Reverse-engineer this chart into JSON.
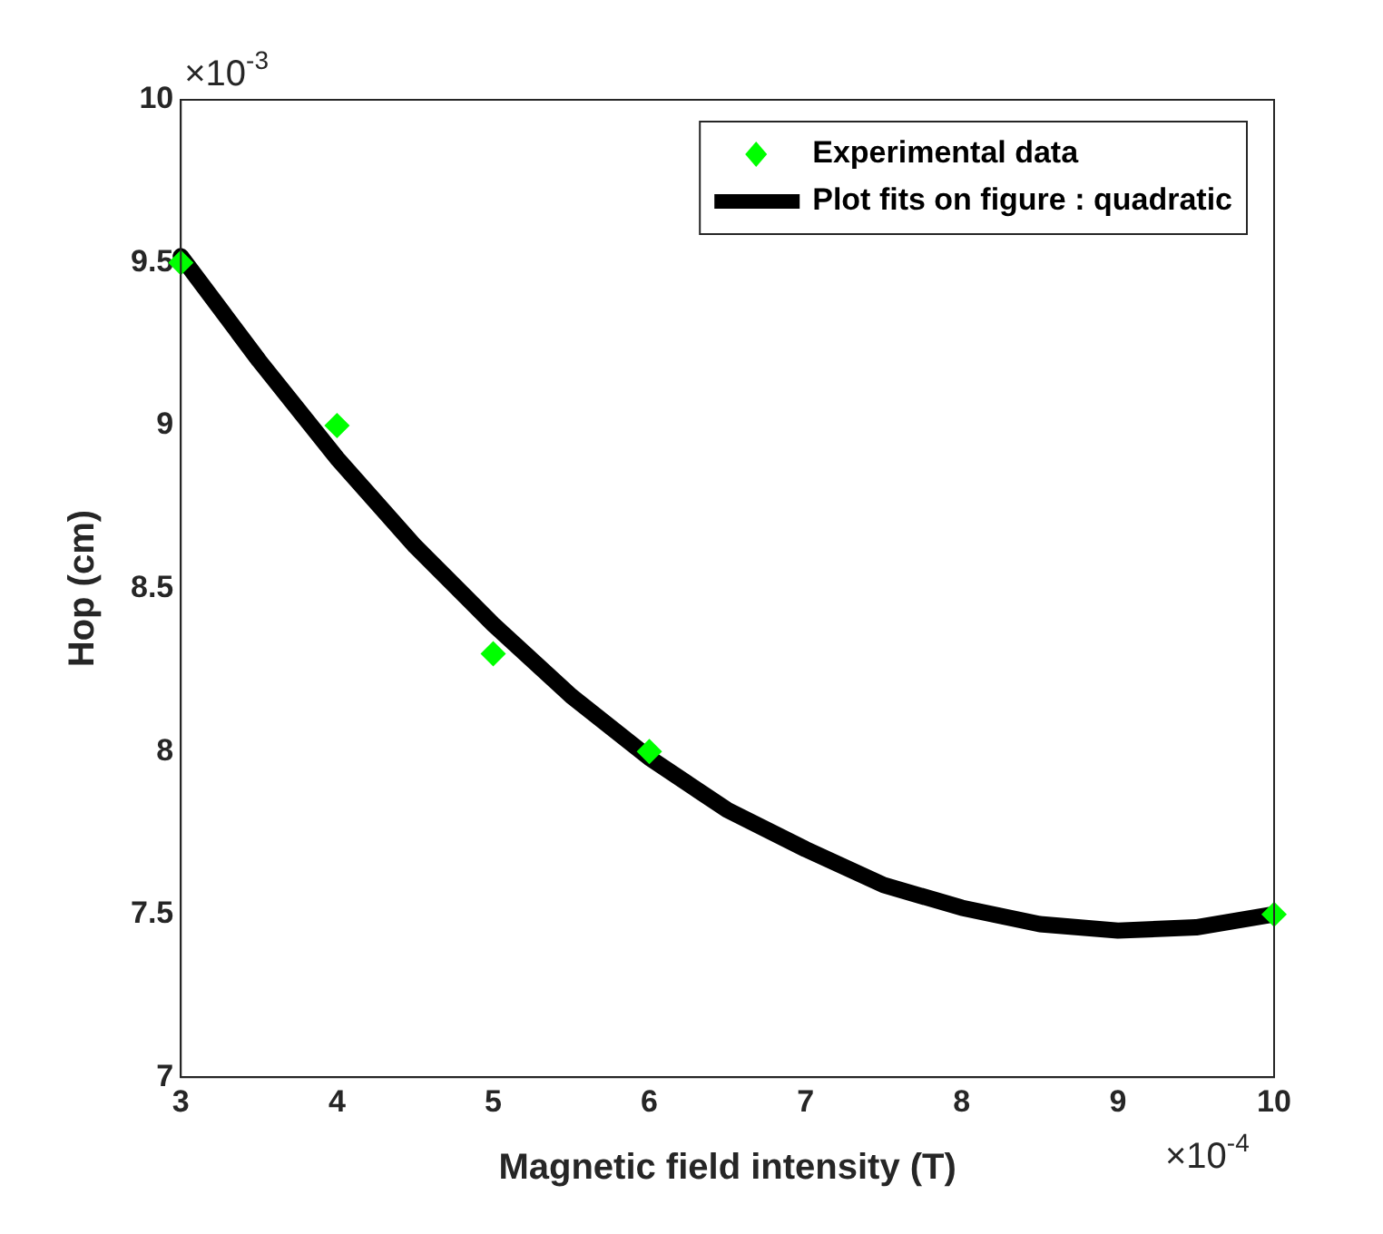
{
  "chart_data": {
    "type": "scatter",
    "xlabel": "Magnetic field intensity (T)",
    "ylabel": "Hop (cm)",
    "xlim": [
      3,
      10
    ],
    "xticks": [
      3,
      4,
      5,
      6,
      7,
      8,
      9,
      10
    ],
    "ylim": [
      7,
      10
    ],
    "yticks": [
      7,
      7.5,
      8,
      8.5,
      9,
      9.5,
      10
    ],
    "annotations": [
      "×10$^{-3}$",
      "×10$^{-4}$"
    ],
    "legend": "top right",
    "grid": false,
    "series": [
      {
        "name": "Experimental data",
        "marker": "diamond",
        "color": "#00ff00",
        "x": [
          3,
          4,
          5,
          6,
          10
        ],
        "values": [
          9.5,
          9.0,
          8.3,
          8.0,
          7.5
        ]
      },
      {
        "name": "Plot fits on figure : quadratic",
        "type": "line",
        "marker": "none",
        "color": "#000000",
        "x": [
          3,
          3.5,
          4,
          4.5,
          5,
          5.5,
          6,
          6.5,
          7,
          7.5,
          8,
          8.5,
          9,
          9.5,
          10
        ],
        "values": [
          9.52,
          9.2,
          8.9,
          8.63,
          8.39,
          8.17,
          7.98,
          7.82,
          7.7,
          7.59,
          7.52,
          7.47,
          7.45,
          7.46,
          7.5
        ]
      }
    ]
  }
}
